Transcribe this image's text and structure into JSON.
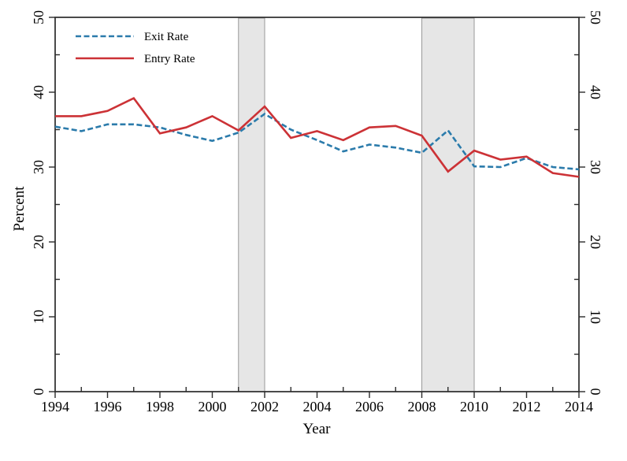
{
  "figure": {
    "colors": {
      "exit_line": "#2b7bab",
      "entry_line": "#cc3236",
      "band_fill": "#e6e6e6",
      "band_stroke": "#999999",
      "frame": "#2b2b2b"
    }
  },
  "legend": {
    "position": "top-left",
    "items": [
      {
        "label": "Exit Rate",
        "style": "dashed",
        "color": "#2b7bab"
      },
      {
        "label": "Entry Rate",
        "style": "solid",
        "color": "#cc3236"
      }
    ]
  },
  "chart_data": {
    "type": "line",
    "title": "",
    "xlabel": "Year",
    "ylabel": "Percent",
    "xlim": [
      1994,
      2014
    ],
    "ylim": [
      0,
      50
    ],
    "grid": false,
    "legend_position": "top-left",
    "x": [
      1994,
      1995,
      1996,
      1997,
      1998,
      1999,
      2000,
      2001,
      2002,
      2003,
      2004,
      2005,
      2006,
      2007,
      2008,
      2009,
      2010,
      2011,
      2012,
      2013,
      2014
    ],
    "series": [
      {
        "name": "Exit Rate",
        "style": "dashed",
        "color": "#2b7bab",
        "values": [
          35.4,
          34.8,
          35.7,
          35.7,
          35.3,
          34.3,
          33.5,
          34.6,
          37.1,
          35.0,
          33.6,
          32.1,
          33.0,
          32.6,
          31.9,
          34.9,
          30.1,
          30.0,
          31.2,
          30.0,
          29.7
        ]
      },
      {
        "name": "Entry Rate",
        "style": "solid",
        "color": "#cc3236",
        "values": [
          36.8,
          36.8,
          37.5,
          39.2,
          34.5,
          35.3,
          36.8,
          34.9,
          38.1,
          33.9,
          34.8,
          33.6,
          35.3,
          35.5,
          34.2,
          29.4,
          32.2,
          31.0,
          31.4,
          29.2,
          28.7
        ]
      }
    ],
    "x_ticks_major": [
      1994,
      1996,
      1998,
      2000,
      2002,
      2004,
      2006,
      2008,
      2010,
      2012,
      2014
    ],
    "x_ticks_minor": [
      1995,
      1997,
      1999,
      2001,
      2003,
      2005,
      2007,
      2009,
      2011,
      2013
    ],
    "y_ticks_major": [
      0,
      10,
      20,
      30,
      40,
      50
    ],
    "y_ticks_minor": [
      5,
      15,
      25,
      35,
      45
    ],
    "shaded_spans": [
      {
        "from": 2001,
        "to": 2002
      },
      {
        "from": 2008,
        "to": 2010
      }
    ]
  }
}
